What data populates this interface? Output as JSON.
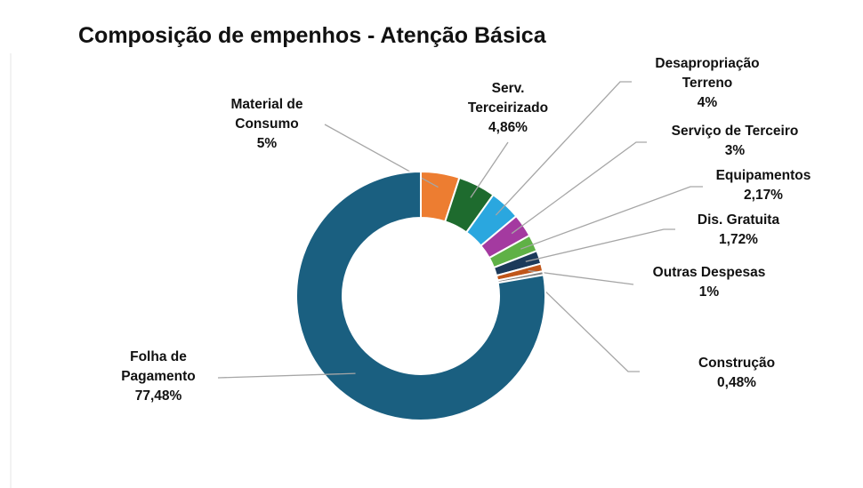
{
  "chart_data": {
    "type": "donut",
    "title": "Composição de empenhos - Atenção Básica",
    "categories": [
      "Material de Consumo",
      "Serv. Terceirizado",
      "Desapropriação Terreno",
      "Serviço de Terceiro",
      "Equipamentos",
      "Dis. Gratuita",
      "Outras Despesas",
      "Construção",
      "Folha de Pagamento"
    ],
    "values": [
      5,
      4.86,
      4,
      3,
      2.17,
      1.72,
      1,
      0.48,
      77.48
    ],
    "value_labels": [
      "5%",
      "4,86%",
      "4%",
      "3%",
      "2,17%",
      "1,72%",
      "1%",
      "0,48%",
      "77,48%"
    ],
    "colors": [
      "#ed7d31",
      "#1e6b2e",
      "#2aa7df",
      "#a43aa0",
      "#5fb146",
      "#1c3a5a",
      "#c0561a",
      "#7f7f7f",
      "#1a5f80"
    ]
  }
}
